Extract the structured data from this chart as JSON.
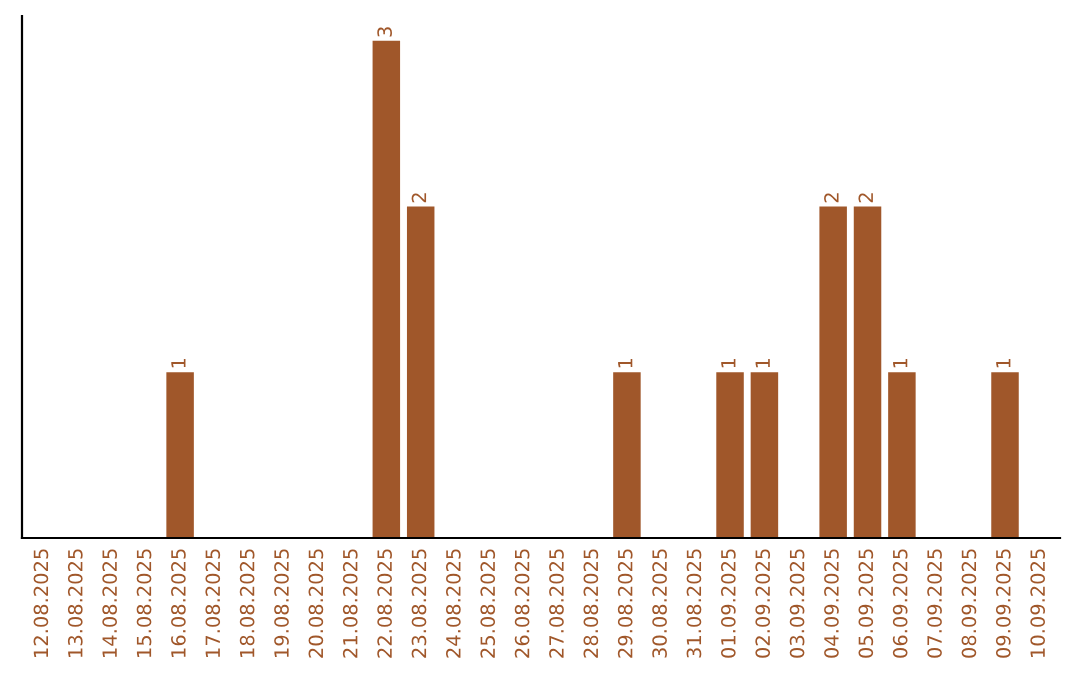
{
  "chart_data": {
    "type": "bar",
    "categories": [
      "12.08.2025",
      "13.08.2025",
      "14.08.2025",
      "15.08.2025",
      "16.08.2025",
      "17.08.2025",
      "18.08.2025",
      "19.08.2025",
      "20.08.2025",
      "21.08.2025",
      "22.08.2025",
      "23.08.2025",
      "24.08.2025",
      "25.08.2025",
      "26.08.2025",
      "27.08.2025",
      "28.08.2025",
      "29.08.2025",
      "30.08.2025",
      "31.08.2025",
      "01.09.2025",
      "02.09.2025",
      "03.09.2025",
      "04.09.2025",
      "05.09.2025",
      "06.09.2025",
      "07.09.2025",
      "08.09.2025",
      "09.09.2025",
      "10.09.2025"
    ],
    "values": [
      0,
      0,
      0,
      0,
      1,
      0,
      0,
      0,
      0,
      0,
      3,
      2,
      0,
      0,
      0,
      0,
      0,
      1,
      0,
      0,
      1,
      1,
      0,
      2,
      2,
      1,
      0,
      0,
      1,
      0
    ],
    "value_labels": [
      null,
      null,
      null,
      null,
      "1",
      null,
      null,
      null,
      null,
      null,
      "3",
      "2",
      null,
      null,
      null,
      null,
      null,
      "1",
      null,
      null,
      "1",
      "1",
      null,
      "2",
      "2",
      "1",
      null,
      null,
      "1",
      null
    ],
    "color": "#a0572a",
    "tick_labels": "x",
    "grid": false,
    "legend": false
  }
}
